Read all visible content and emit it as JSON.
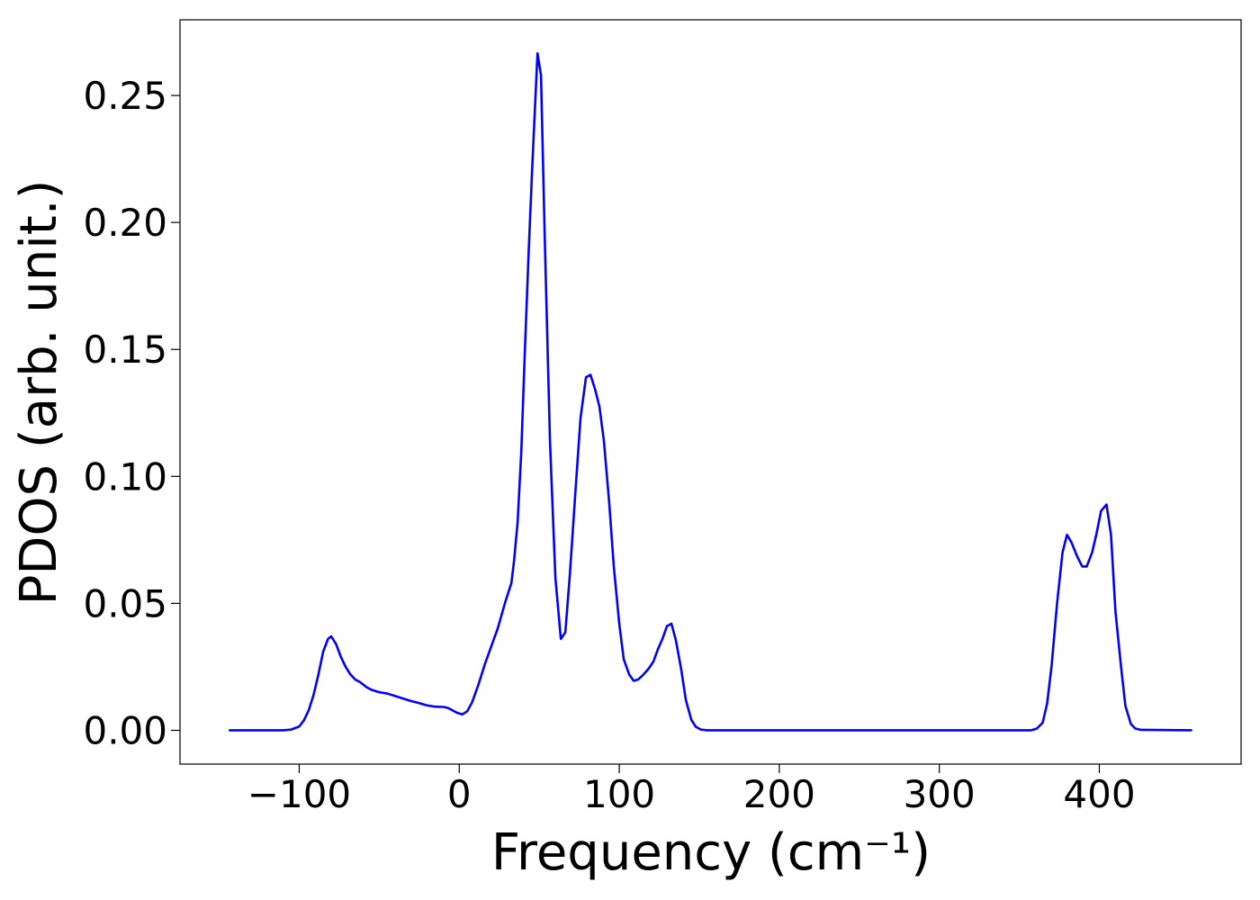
{
  "chart_data": {
    "type": "line",
    "x_label": "Frequency (cm⁻¹)",
    "y_label": "PDOS (arb. unit.)",
    "x": [
      -144,
      -110,
      -105,
      -100,
      -97,
      -94,
      -91,
      -88,
      -85,
      -82,
      -80,
      -77,
      -74,
      -71,
      -68,
      -65,
      -62,
      -58,
      -55,
      -50,
      -45,
      -40,
      -35,
      -30,
      -25,
      -20,
      -15,
      -10,
      -7,
      -4,
      -1,
      2,
      5,
      8,
      12,
      16,
      20,
      24,
      29,
      32.6,
      34.3,
      36.5,
      38.8,
      41,
      43.3,
      45.5,
      48.9,
      51.1,
      53.4,
      56.7,
      60.1,
      63.5,
      66.3,
      69.1,
      72.5,
      75.8,
      79.2,
      82,
      84.8,
      87.6,
      90.4,
      93.8,
      96.6,
      100,
      102.8,
      106.2,
      109,
      111.8,
      115.2,
      118.5,
      121.3,
      124.2,
      127,
      129.8,
      132.6,
      135.4,
      138.8,
      141.6,
      145,
      147.8,
      151,
      155,
      357.3,
      361,
      364.6,
      367.4,
      370.2,
      373.6,
      377,
      379.8,
      382.6,
      386,
      389.3,
      392.1,
      395.5,
      398.3,
      401.1,
      404.5,
      407.3,
      410.1,
      413.5,
      416.3,
      419.7,
      422.5,
      425.8,
      458
    ],
    "values": [
      0,
      0,
      0.0003,
      0.0015,
      0.004,
      0.008,
      0.014,
      0.022,
      0.031,
      0.036,
      0.037,
      0.034,
      0.029,
      0.025,
      0.022,
      0.02,
      0.019,
      0.017,
      0.016,
      0.015,
      0.0145,
      0.0135,
      0.0125,
      0.0115,
      0.0107,
      0.0098,
      0.0093,
      0.0092,
      0.0088,
      0.0078,
      0.0068,
      0.0063,
      0.0075,
      0.011,
      0.018,
      0.026,
      0.033,
      0.04,
      0.051,
      0.058,
      0.067,
      0.082,
      0.11,
      0.149,
      0.187,
      0.22,
      0.2666,
      0.258,
      0.195,
      0.114,
      0.06,
      0.036,
      0.0386,
      0.061,
      0.093,
      0.123,
      0.139,
      0.14,
      0.1345,
      0.1275,
      0.114,
      0.089,
      0.0645,
      0.042,
      0.028,
      0.022,
      0.0195,
      0.02,
      0.022,
      0.0244,
      0.027,
      0.032,
      0.036,
      0.041,
      0.042,
      0.0354,
      0.0237,
      0.012,
      0.0042,
      0.0014,
      0.0003,
      0,
      0,
      0.0007,
      0.003,
      0.0106,
      0.0255,
      0.05,
      0.07,
      0.077,
      0.074,
      0.0687,
      0.0645,
      0.0645,
      0.07,
      0.0776,
      0.0864,
      0.0889,
      0.077,
      0.0467,
      0.0255,
      0.0096,
      0.0025,
      0.0007,
      0.0002,
      0
    ],
    "color": "#0000ff",
    "xlim": [
      -174.5,
      488.6
    ],
    "ylim": [
      -0.0133,
      0.2798
    ],
    "xticks": [
      {
        "value": -100,
        "label": "−100"
      },
      0,
      100,
      200,
      300,
      400
    ],
    "yticks": [
      {
        "value": 0,
        "label": "0.00"
      },
      {
        "value": 0.05,
        "label": "0.05"
      },
      {
        "value": 0.1,
        "label": "0.10"
      },
      {
        "value": 0.15,
        "label": "0.15"
      },
      {
        "value": 0.2,
        "label": "0.20"
      },
      {
        "value": 0.25,
        "label": "0.25"
      }
    ]
  }
}
